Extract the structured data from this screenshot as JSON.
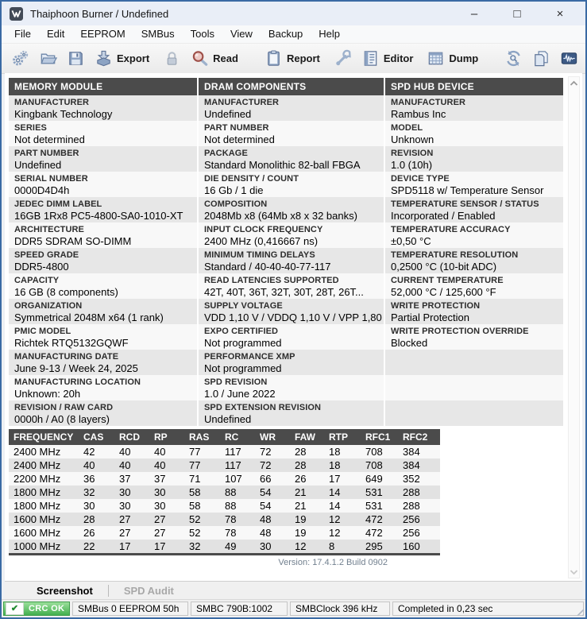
{
  "window": {
    "title": "Thaiphoon Burner / Undefined",
    "controls": {
      "minimize": "–",
      "maximize": "□",
      "close": "×"
    }
  },
  "menu": {
    "items": [
      "File",
      "Edit",
      "EEPROM",
      "SMBus",
      "Tools",
      "View",
      "Backup",
      "Help"
    ]
  },
  "toolbar": {
    "buttons": [
      {
        "icon": "settings-gears-icon"
      },
      {
        "icon": "open-folder-icon"
      },
      {
        "icon": "save-icon"
      },
      {
        "icon": "export-icon",
        "label": "Export"
      },
      {
        "icon": "lock-icon"
      },
      {
        "icon": "read-icon",
        "label": "Read"
      },
      {
        "separator": true
      },
      {
        "icon": "report-icon",
        "label": "Report"
      },
      {
        "icon": "wrench-icon"
      },
      {
        "icon": "editor-icon",
        "label": "Editor"
      },
      {
        "icon": "dump-icon",
        "label": "Dump"
      },
      {
        "separator": true
      },
      {
        "icon": "refresh-search-icon"
      },
      {
        "icon": "copy-icon"
      },
      {
        "icon": "waveform-icon"
      }
    ]
  },
  "sections": [
    {
      "title": "MEMORY MODULE",
      "rows": [
        {
          "label": "MANUFACTURER",
          "value": "Kingbank Technology"
        },
        {
          "label": "SERIES",
          "value": "Not determined"
        },
        {
          "label": "PART NUMBER",
          "value": "Undefined"
        },
        {
          "label": "SERIAL NUMBER",
          "value": "0000D4D4h"
        },
        {
          "label": "JEDEC DIMM LABEL",
          "value": "16GB 1Rx8 PC5-4800-SA0-1010-XT"
        },
        {
          "label": "ARCHITECTURE",
          "value": "DDR5 SDRAM SO-DIMM"
        },
        {
          "label": "SPEED GRADE",
          "value": "DDR5-4800"
        },
        {
          "label": "CAPACITY",
          "value": "16 GB (8 components)"
        },
        {
          "label": "ORGANIZATION",
          "value": "Symmetrical 2048M x64 (1 rank)"
        },
        {
          "label": "PMIC MODEL",
          "value": "Richtek RTQ5132GQWF"
        },
        {
          "label": "MANUFACTURING DATE",
          "value": "June 9-13 / Week 24, 2025"
        },
        {
          "label": "MANUFACTURING LOCATION",
          "value": "Unknown: 20h"
        },
        {
          "label": "REVISION / RAW CARD",
          "value": "0000h / A0 (8 layers)"
        }
      ]
    },
    {
      "title": "DRAM COMPONENTS",
      "rows": [
        {
          "label": "MANUFACTURER",
          "value": "Undefined"
        },
        {
          "label": "PART NUMBER",
          "value": "Not determined"
        },
        {
          "label": "PACKAGE",
          "value": "Standard Monolithic 82-ball FBGA"
        },
        {
          "label": "DIE DENSITY / COUNT",
          "value": "16 Gb / 1 die"
        },
        {
          "label": "COMPOSITION",
          "value": "2048Mb x8 (64Mb x8 x 32 banks)"
        },
        {
          "label": "INPUT CLOCK FREQUENCY",
          "value": "2400 MHz (0,416667 ns)"
        },
        {
          "label": "MINIMUM TIMING DELAYS",
          "value": "Standard / 40-40-40-77-117"
        },
        {
          "label": "READ LATENCIES SUPPORTED",
          "value": "42T, 40T, 36T, 32T, 30T, 28T, 26T..."
        },
        {
          "label": "SUPPLY VOLTAGE",
          "value": "VDD 1,10 V / VDDQ 1,10 V / VPP 1,80 V"
        },
        {
          "label": "EXPO CERTIFIED",
          "value": "Not programmed"
        },
        {
          "label": "PERFORMANCE XMP",
          "value": "Not programmed"
        },
        {
          "label": "SPD REVISION",
          "value": "1.0 / June 2022"
        },
        {
          "label": "SPD EXTENSION REVISION",
          "value": "Undefined"
        }
      ]
    },
    {
      "title": "SPD HUB DEVICE",
      "rows": [
        {
          "label": "MANUFACTURER",
          "value": "Rambus Inc"
        },
        {
          "label": "MODEL",
          "value": "Unknown"
        },
        {
          "label": "REVISION",
          "value": "1.0 (10h)"
        },
        {
          "label": "DEVICE TYPE",
          "value": "SPD5118 w/ Temperature Sensor"
        },
        {
          "label": "TEMPERATURE SENSOR / STATUS",
          "value": "Incorporated / Enabled"
        },
        {
          "label": "TEMPERATURE ACCURACY",
          "value": "±0,50 °C"
        },
        {
          "label": "TEMPERATURE RESOLUTION",
          "value": "0,2500 °C (10-bit ADC)"
        },
        {
          "label": "CURRENT TEMPERATURE",
          "value": "52,000 °C / 125,600 °F"
        },
        {
          "label": "WRITE PROTECTION",
          "value": "Partial Protection"
        },
        {
          "label": "WRITE PROTECTION OVERRIDE",
          "value": "Blocked"
        },
        {
          "label": "",
          "value": ""
        },
        {
          "label": "",
          "value": ""
        },
        {
          "label": "",
          "value": ""
        }
      ]
    }
  ],
  "timing_table": {
    "headers": [
      "FREQUENCY",
      "CAS",
      "RCD",
      "RP",
      "RAS",
      "RC",
      "WR",
      "FAW",
      "RTP",
      "RFC1",
      "RFC2"
    ],
    "rows": [
      [
        "2400 MHz",
        "42",
        "40",
        "40",
        "77",
        "117",
        "72",
        "28",
        "18",
        "708",
        "384"
      ],
      [
        "2400 MHz",
        "40",
        "40",
        "40",
        "77",
        "117",
        "72",
        "28",
        "18",
        "708",
        "384"
      ],
      [
        "2200 MHz",
        "36",
        "37",
        "37",
        "71",
        "107",
        "66",
        "26",
        "17",
        "649",
        "352"
      ],
      [
        "1800 MHz",
        "32",
        "30",
        "30",
        "58",
        "88",
        "54",
        "21",
        "14",
        "531",
        "288"
      ],
      [
        "1800 MHz",
        "30",
        "30",
        "30",
        "58",
        "88",
        "54",
        "21",
        "14",
        "531",
        "288"
      ],
      [
        "1600 MHz",
        "28",
        "27",
        "27",
        "52",
        "78",
        "48",
        "19",
        "12",
        "472",
        "256"
      ],
      [
        "1600 MHz",
        "26",
        "27",
        "27",
        "52",
        "78",
        "48",
        "19",
        "12",
        "472",
        "256"
      ],
      [
        "1000 MHz",
        "22",
        "17",
        "17",
        "32",
        "49",
        "30",
        "12",
        "8",
        "295",
        "160"
      ]
    ]
  },
  "version_label": "Version: 17.4.1.2 Build 0902",
  "tabs": [
    {
      "label": "Screenshot",
      "active": true
    },
    {
      "label": "SPD Audit",
      "active": false
    }
  ],
  "statusbar": {
    "check_icon": "✔",
    "crc_label": "CRC OK",
    "panels": [
      "SMBus 0 EEPROM 50h",
      "SMBC 790B:1002",
      "SMBClock 396 kHz",
      "Completed in 0,23 sec"
    ]
  }
}
